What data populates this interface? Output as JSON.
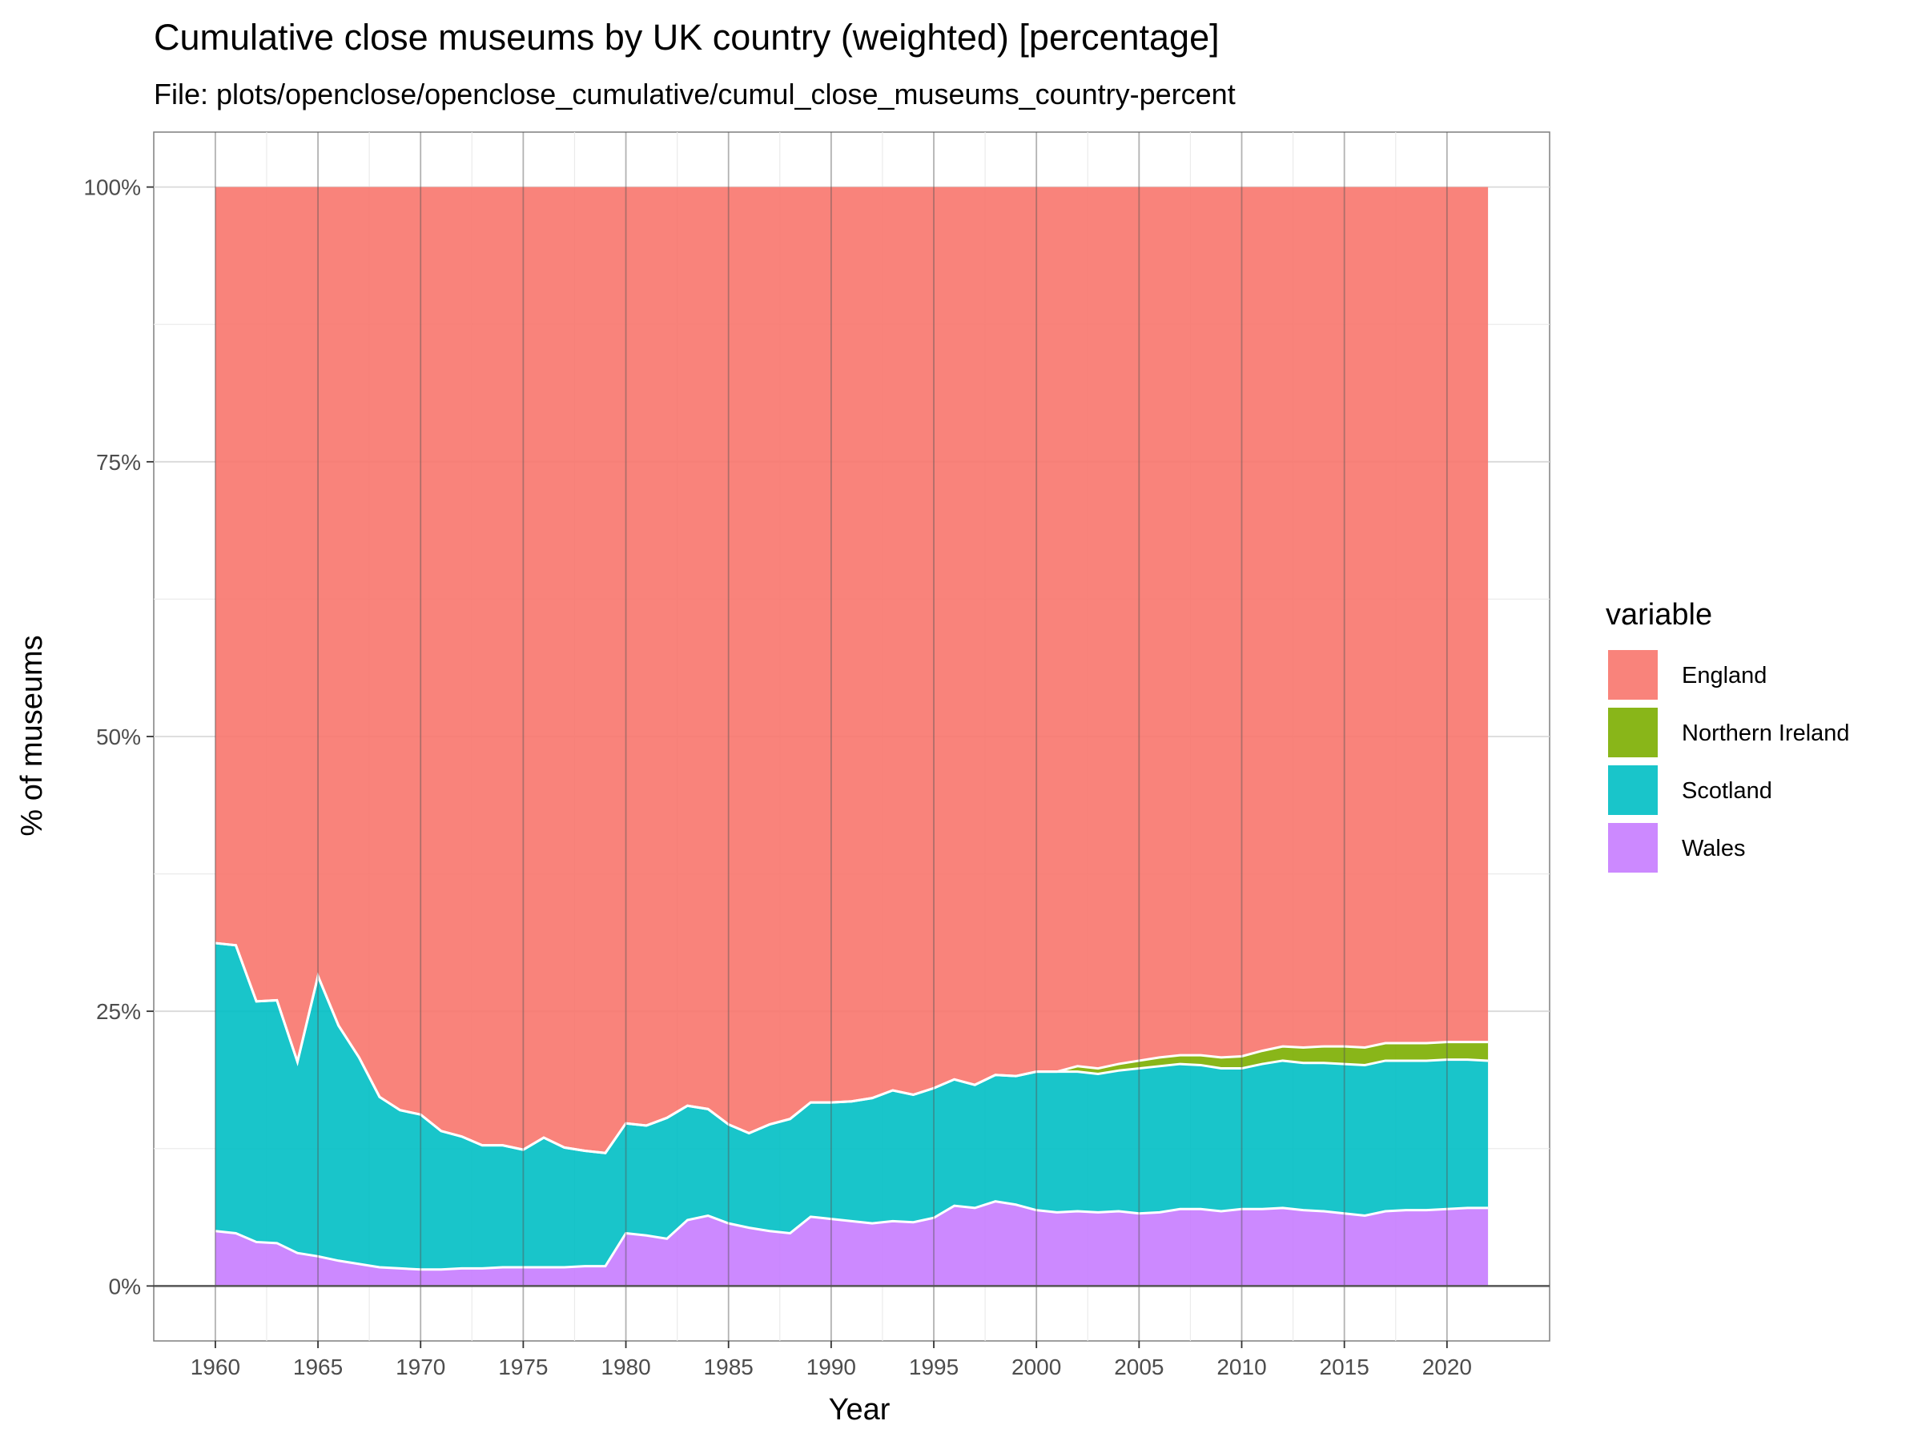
{
  "chart_data": {
    "type": "area",
    "stacked": true,
    "normalized": true,
    "title": "Cumulative close museums by UK country (weighted) [percentage]",
    "subtitle": "File: plots/openclose/openclose_cumulative/cumul_close_museums_country-percent",
    "xlabel": "Year",
    "ylabel": "% of museums",
    "xlim": [
      1957,
      2025
    ],
    "ylim": [
      -0.05,
      1.05
    ],
    "x_ticks": [
      1960,
      1965,
      1970,
      1975,
      1980,
      1985,
      1990,
      1995,
      2000,
      2005,
      2010,
      2015,
      2020
    ],
    "x_tick_labels": [
      "1960",
      "1965",
      "1970",
      "1975",
      "1980",
      "1985",
      "1990",
      "1995",
      "2000",
      "2005",
      "2010",
      "2015",
      "2020"
    ],
    "y_ticks": [
      0,
      0.25,
      0.5,
      0.75,
      1.0
    ],
    "y_tick_labels": [
      "0%",
      "25%",
      "50%",
      "75%",
      "100%"
    ],
    "grid": true,
    "legend": {
      "title": "variable",
      "position": "right"
    },
    "x": [
      1960,
      1961,
      1962,
      1963,
      1964,
      1965,
      1966,
      1967,
      1968,
      1969,
      1970,
      1971,
      1972,
      1973,
      1974,
      1975,
      1976,
      1977,
      1978,
      1979,
      1980,
      1981,
      1982,
      1983,
      1984,
      1985,
      1986,
      1987,
      1988,
      1989,
      1990,
      1991,
      1992,
      1993,
      1994,
      1995,
      1996,
      1997,
      1998,
      1999,
      2000,
      2001,
      2002,
      2003,
      2004,
      2005,
      2006,
      2007,
      2008,
      2009,
      2010,
      2011,
      2012,
      2013,
      2014,
      2015,
      2016,
      2017,
      2018,
      2019,
      2020,
      2021,
      2022
    ],
    "series": [
      {
        "name": "Wales",
        "color": "#C77CFF",
        "values": [
          0.05,
          0.048,
          0.04,
          0.039,
          0.03,
          0.027,
          0.023,
          0.02,
          0.017,
          0.016,
          0.015,
          0.015,
          0.016,
          0.016,
          0.017,
          0.017,
          0.017,
          0.017,
          0.018,
          0.018,
          0.048,
          0.046,
          0.043,
          0.06,
          0.064,
          0.057,
          0.053,
          0.05,
          0.048,
          0.063,
          0.061,
          0.059,
          0.057,
          0.059,
          0.058,
          0.062,
          0.073,
          0.071,
          0.077,
          0.074,
          0.069,
          0.067,
          0.068,
          0.067,
          0.068,
          0.066,
          0.067,
          0.07,
          0.07,
          0.068,
          0.07,
          0.07,
          0.071,
          0.069,
          0.068,
          0.066,
          0.064,
          0.068,
          0.069,
          0.069,
          0.07,
          0.071,
          0.071
        ]
      },
      {
        "name": "Scotland",
        "color": "#00BFC4",
        "values": [
          0.262,
          0.262,
          0.219,
          0.221,
          0.174,
          0.255,
          0.214,
          0.188,
          0.155,
          0.144,
          0.141,
          0.126,
          0.12,
          0.112,
          0.111,
          0.107,
          0.118,
          0.109,
          0.105,
          0.103,
          0.1,
          0.1,
          0.11,
          0.104,
          0.097,
          0.09,
          0.086,
          0.097,
          0.104,
          0.104,
          0.106,
          0.109,
          0.114,
          0.119,
          0.116,
          0.118,
          0.115,
          0.112,
          0.115,
          0.117,
          0.126,
          0.128,
          0.127,
          0.126,
          0.128,
          0.132,
          0.133,
          0.132,
          0.131,
          0.13,
          0.128,
          0.132,
          0.134,
          0.134,
          0.135,
          0.136,
          0.137,
          0.137,
          0.136,
          0.136,
          0.136,
          0.135,
          0.134
        ]
      },
      {
        "name": "Northern Ireland",
        "color": "#7CAE00",
        "values": [
          0,
          0,
          0,
          0,
          0,
          0,
          0,
          0,
          0,
          0,
          0,
          0,
          0,
          0,
          0,
          0,
          0,
          0,
          0,
          0,
          0,
          0,
          0,
          0,
          0,
          0,
          0,
          0,
          0,
          0,
          0,
          0,
          0,
          0,
          0,
          0,
          0,
          0,
          0,
          0,
          0,
          0,
          0.005,
          0.005,
          0.006,
          0.007,
          0.008,
          0.008,
          0.009,
          0.01,
          0.011,
          0.012,
          0.013,
          0.014,
          0.015,
          0.016,
          0.016,
          0.016,
          0.016,
          0.016,
          0.016,
          0.016,
          0.017
        ]
      },
      {
        "name": "England",
        "color": "#F8766D",
        "values": [
          0.688,
          0.69,
          0.741,
          0.74,
          0.796,
          0.718,
          0.763,
          0.792,
          0.828,
          0.84,
          0.844,
          0.859,
          0.864,
          0.872,
          0.872,
          0.876,
          0.865,
          0.874,
          0.877,
          0.879,
          0.852,
          0.854,
          0.847,
          0.836,
          0.839,
          0.853,
          0.861,
          0.853,
          0.848,
          0.833,
          0.833,
          0.832,
          0.829,
          0.822,
          0.826,
          0.82,
          0.812,
          0.817,
          0.808,
          0.809,
          0.805,
          0.805,
          0.8,
          0.802,
          0.798,
          0.795,
          0.792,
          0.79,
          0.79,
          0.792,
          0.791,
          0.786,
          0.782,
          0.783,
          0.782,
          0.782,
          0.783,
          0.779,
          0.779,
          0.779,
          0.778,
          0.778,
          0.778
        ]
      }
    ],
    "legend_order": [
      "England",
      "Northern Ireland",
      "Scotland",
      "Wales"
    ]
  }
}
